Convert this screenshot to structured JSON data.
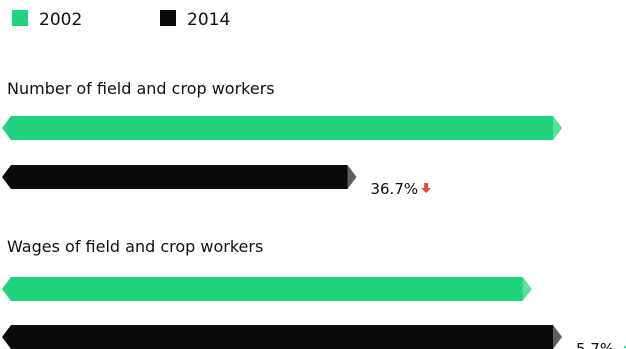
{
  "chart_data": {
    "type": "bar",
    "orientation": "horizontal",
    "legend": {
      "placement": "top-left",
      "items": [
        {
          "label": "2002",
          "color": "#22d27d"
        },
        {
          "label": "2014",
          "color": "#0a0a0a"
        }
      ]
    },
    "groups": [
      {
        "title": "Number of field and crop workers",
        "values": [
          1.0,
          0.633
        ],
        "change": {
          "label": "36.7%",
          "direction": "down",
          "color": "#e8473f"
        }
      },
      {
        "title": "Wages of field and crop workers",
        "values": [
          0.946,
          1.0
        ],
        "change": {
          "label": "5.7%",
          "direction": "up",
          "color": "#22d27d"
        }
      }
    ],
    "value_scale": "relative",
    "grid": false
  }
}
